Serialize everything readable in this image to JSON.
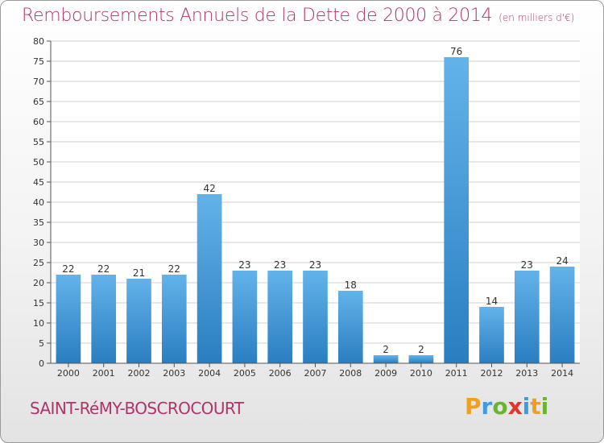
{
  "header": {
    "title": "Remboursements Annuels de la Dette de 2000 à 2014",
    "subtitle": "(en milliers d'€)"
  },
  "footer": {
    "commune": "SAINT-RéMY-BOSCROCOURT",
    "logo": [
      "P",
      "r",
      "o",
      "x",
      "i",
      "t",
      "i"
    ],
    "logo_colors": [
      "#f0a020",
      "#3d9be0",
      "#6ab42e",
      "#e0352b",
      "#3d9be0",
      "#f0a020",
      "#6ab42e"
    ]
  },
  "chart_data": {
    "type": "bar",
    "title": "Remboursements Annuels de la Dette de 2000 à 2014",
    "categories": [
      "2000",
      "2001",
      "2002",
      "2003",
      "2004",
      "2005",
      "2006",
      "2007",
      "2008",
      "2009",
      "2010",
      "2011",
      "2012",
      "2013",
      "2014"
    ],
    "values": [
      22,
      22,
      21,
      22,
      42,
      23,
      23,
      23,
      18,
      2,
      2,
      76,
      14,
      23,
      24
    ],
    "ylim": [
      0,
      80
    ],
    "yticks": [
      0,
      5,
      10,
      15,
      20,
      25,
      30,
      35,
      40,
      45,
      50,
      55,
      60,
      65,
      70,
      75,
      80
    ],
    "grid": true,
    "bar_color_light": "#63b3ea",
    "bar_color_dark": "#2a7ec0"
  }
}
